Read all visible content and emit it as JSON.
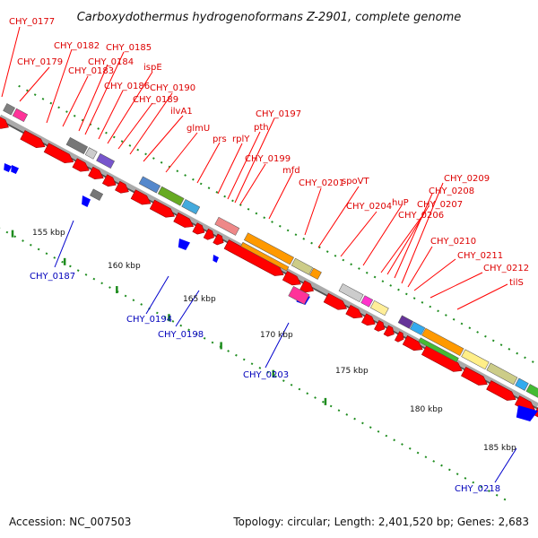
{
  "header": {
    "title": "Carboxydothermus hydrogenoformans Z-2901, complete genome"
  },
  "footer": {
    "accession": "Accession: NC_007503",
    "topology": "Topology: circular; Length: 2,401,520 bp; Genes: 2,683"
  },
  "colors": {
    "forward": "#ff0000",
    "reverse": "#0000ff",
    "axis": "#9a9a9a",
    "tick": "#1e8c1e",
    "red_label": "#dd0000",
    "blue_label": "#0000bb"
  },
  "scale_labels": [
    {
      "label": "155 kbp",
      "pos": 155
    },
    {
      "label": "160 kbp",
      "pos": 160
    },
    {
      "label": "165 kbp",
      "pos": 165
    },
    {
      "label": "170 kbp",
      "pos": 170
    },
    {
      "label": "175 kbp",
      "pos": 175
    },
    {
      "label": "180 kbp",
      "pos": 180
    },
    {
      "label": "185 kbp",
      "pos": 185
    }
  ],
  "forward_labels": [
    "CHY_0177",
    "CHY_0179",
    "CHY_0182",
    "CHY_0183",
    "CHY_0184",
    "CHY_0185",
    "CHY_0186",
    "ispE",
    "CHY_0189",
    "CHY_0190",
    "ilvA1",
    "glmU",
    "prs",
    "rplY",
    "pth",
    "CHY_0197",
    "CHY_0199",
    "mfd",
    "CHY_0201",
    "spoVT",
    "CHY_0204",
    "huP",
    "CHY_0206",
    "CHY_0207",
    "CHY_0208",
    "CHY_0209",
    "CHY_0210",
    "CHY_0211",
    "CHY_0212",
    "tilS"
  ],
  "reverse_labels": [
    "CHY_0187",
    "CHY_0194",
    "CHY_0198",
    "CHY_0203",
    "CHY_0218"
  ]
}
